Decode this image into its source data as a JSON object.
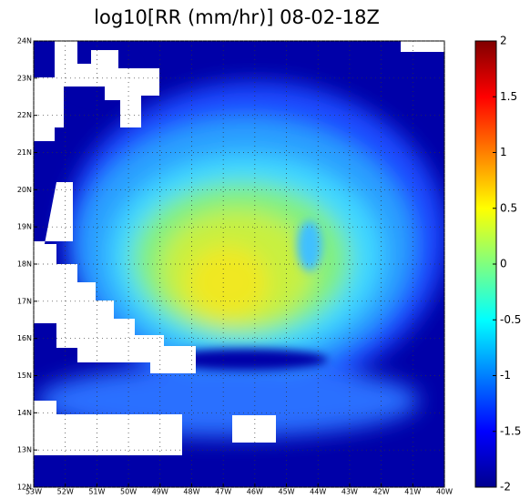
{
  "chart_data": {
    "type": "heatmap",
    "title": "log10[RR (mm/hr)] 08-02-18Z",
    "xlim": [
      -53,
      -40
    ],
    "xticks": [
      {
        "value": -53,
        "label": "53W"
      },
      {
        "value": -52,
        "label": "52W"
      },
      {
        "value": -51,
        "label": "51W"
      },
      {
        "value": -50,
        "label": "50W"
      },
      {
        "value": -49,
        "label": "49W"
      },
      {
        "value": -48,
        "label": "48W"
      },
      {
        "value": -47,
        "label": "47W"
      },
      {
        "value": -46,
        "label": "46W"
      },
      {
        "value": -45,
        "label": "45W"
      },
      {
        "value": -44,
        "label": "44W"
      },
      {
        "value": -43,
        "label": "43W"
      },
      {
        "value": -42,
        "label": "42W"
      },
      {
        "value": -41,
        "label": "41W"
      },
      {
        "value": -40,
        "label": "40W"
      }
    ],
    "ylim": [
      12,
      24
    ],
    "yticks": [
      {
        "value": 12,
        "label": "12N"
      },
      {
        "value": 13,
        "label": "13N"
      },
      {
        "value": 14,
        "label": "14N"
      },
      {
        "value": 15,
        "label": "15N"
      },
      {
        "value": 16,
        "label": "16N"
      },
      {
        "value": 17,
        "label": "17N"
      },
      {
        "value": 18,
        "label": "18N"
      },
      {
        "value": 19,
        "label": "19N"
      },
      {
        "value": 20,
        "label": "20N"
      },
      {
        "value": 21,
        "label": "21N"
      },
      {
        "value": 22,
        "label": "22N"
      },
      {
        "value": 23,
        "label": "23N"
      },
      {
        "value": 24,
        "label": "24N"
      }
    ],
    "grid": true,
    "colorbar": {
      "lim": [
        -2,
        2
      ],
      "ticks": [
        -2,
        -1.5,
        -1,
        -0.5,
        0,
        0.5,
        1,
        1.5,
        2
      ]
    }
  }
}
